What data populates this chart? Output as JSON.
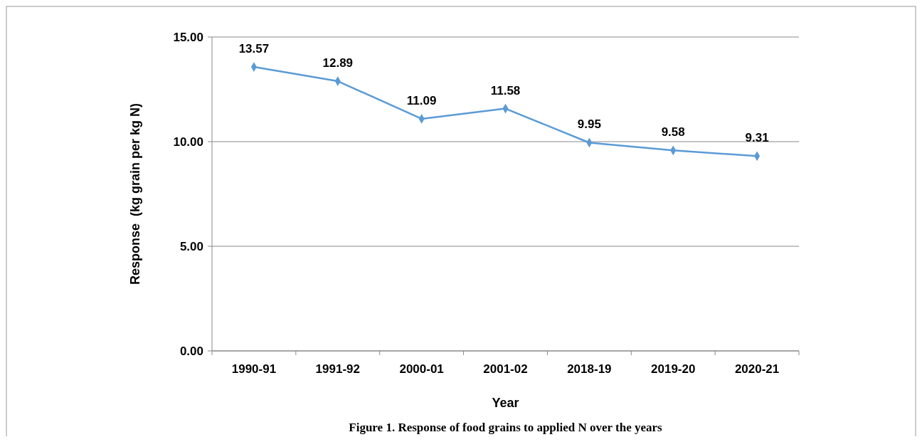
{
  "chart_data": {
    "type": "line",
    "xlabel": "Year",
    "ylabel": "Response  (kg grain per kg N)",
    "annotations": [
      "Figure 1. Response of food grains to applied N over the years"
    ],
    "categories": [
      "1990-91",
      "1991-92",
      "2000-01",
      "2001-02",
      "2018-19",
      "2019-20",
      "2020-21"
    ],
    "series": [
      {
        "color": "#5b9bd5",
        "values": [
          13.57,
          12.89,
          11.09,
          11.58,
          9.95,
          9.58,
          9.31
        ]
      }
    ],
    "ylim": [
      0,
      15
    ],
    "yticks": [
      {
        "value": 0,
        "label": "0.00"
      },
      {
        "value": 5,
        "label": "5.00"
      },
      {
        "value": 10,
        "label": "10.00"
      },
      {
        "value": 15,
        "label": "15.00"
      }
    ],
    "grid": "y",
    "marker": "diamond",
    "line_style": "solid",
    "data_labels": true
  }
}
